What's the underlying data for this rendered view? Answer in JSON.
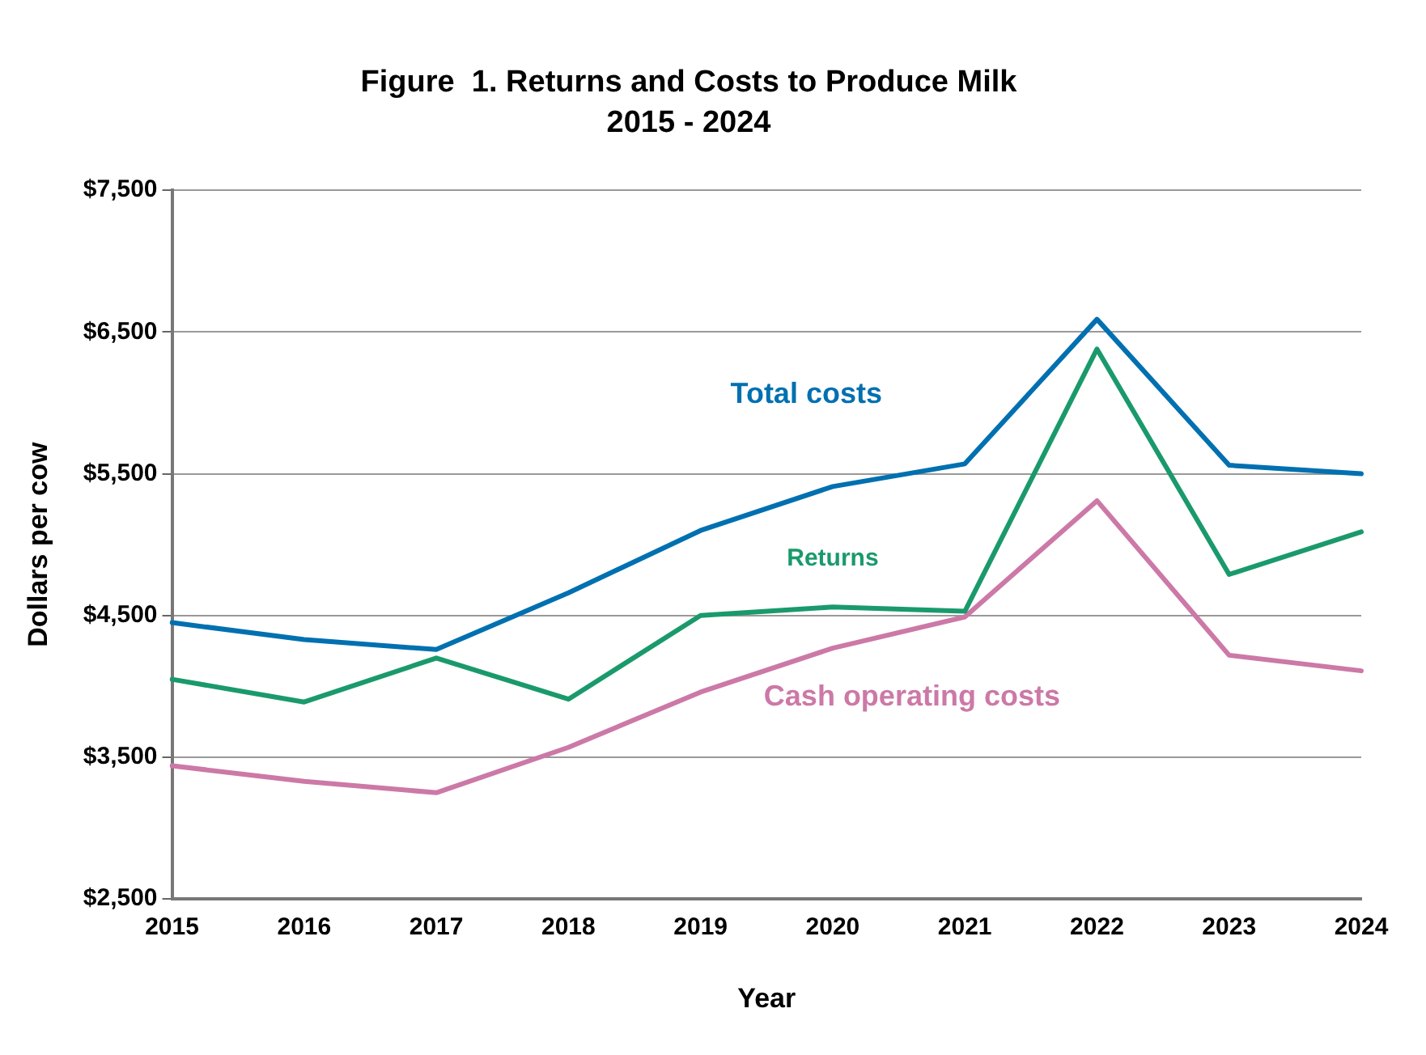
{
  "chart_data": {
    "type": "line",
    "title": "Figure  1. Returns and Costs to Produce Milk",
    "subtitle": "2015 - 2024",
    "xlabel": "Year",
    "ylabel": "Dollars per cow",
    "categories": [
      "2015",
      "2016",
      "2017",
      "2018",
      "2019",
      "2020",
      "2021",
      "2022",
      "2023",
      "2024"
    ],
    "series": [
      {
        "name": "Total costs",
        "color": "#0070b0",
        "values": [
          4450,
          4330,
          4260,
          4660,
          5100,
          5410,
          5570,
          6590,
          5560,
          5500
        ]
      },
      {
        "name": "Returns",
        "color": "#1a9a6c",
        "values": [
          4050,
          3890,
          4200,
          3910,
          4500,
          4560,
          4530,
          6380,
          4790,
          5090
        ]
      },
      {
        "name": "Cash operating costs",
        "color": "#cc79a7",
        "values": [
          3440,
          3330,
          3250,
          3570,
          3960,
          4270,
          4490,
          5310,
          4220,
          4110
        ]
      }
    ],
    "ylim": [
      2500,
      7500
    ],
    "yticks": [
      {
        "value": 2500,
        "label": "$2,500"
      },
      {
        "value": 3500,
        "label": "$3,500"
      },
      {
        "value": 4500,
        "label": "$4,500"
      },
      {
        "value": 5500,
        "label": "$5,500"
      },
      {
        "value": 6500,
        "label": "$6,500"
      },
      {
        "value": 7500,
        "label": "$7,500"
      }
    ],
    "grid": "y",
    "legend": false,
    "marker": "none",
    "line_style": "solid"
  }
}
